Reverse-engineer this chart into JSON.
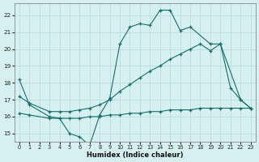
{
  "xlabel": "Humidex (Indice chaleur)",
  "bg_color": "#d6f0f0",
  "grid_color": "#b8dede",
  "line_color": "#1a6b6b",
  "xlim": [
    -0.5,
    23.5
  ],
  "ylim": [
    14.5,
    22.7
  ],
  "xticks": [
    0,
    1,
    2,
    3,
    4,
    5,
    6,
    7,
    8,
    9,
    10,
    11,
    12,
    13,
    14,
    15,
    16,
    17,
    18,
    19,
    20,
    21,
    22,
    23
  ],
  "yticks": [
    15,
    16,
    17,
    18,
    19,
    20,
    21,
    22
  ],
  "line1_x": [
    0,
    1,
    3,
    4,
    5,
    6,
    7,
    8,
    9,
    10,
    11,
    12,
    13,
    14,
    15,
    16,
    17,
    19,
    20,
    21,
    22,
    23
  ],
  "line1_y": [
    18.2,
    16.7,
    16.0,
    15.9,
    15.0,
    14.8,
    14.3,
    16.1,
    17.1,
    20.3,
    21.3,
    21.5,
    21.4,
    22.3,
    22.3,
    21.1,
    21.3,
    20.3,
    20.3,
    17.7,
    17.0,
    16.5
  ],
  "line2_x": [
    0,
    1,
    3,
    4,
    5,
    6,
    7,
    8,
    9,
    10,
    11,
    12,
    13,
    14,
    15,
    16,
    17,
    18,
    19,
    20,
    21,
    22,
    23
  ],
  "line2_y": [
    16.2,
    16.1,
    15.9,
    15.9,
    15.9,
    15.9,
    16.0,
    16.0,
    16.1,
    16.1,
    16.2,
    16.2,
    16.3,
    16.3,
    16.4,
    16.4,
    16.4,
    16.5,
    16.5,
    16.5,
    16.5,
    16.5,
    16.5
  ],
  "line3_x": [
    0,
    1,
    3,
    4,
    5,
    6,
    7,
    8,
    9,
    10,
    11,
    12,
    13,
    14,
    15,
    16,
    17,
    18,
    19,
    20,
    22,
    23
  ],
  "line3_y": [
    17.2,
    16.8,
    16.3,
    16.3,
    16.3,
    16.4,
    16.5,
    16.7,
    17.0,
    17.5,
    17.9,
    18.3,
    18.7,
    19.0,
    19.4,
    19.7,
    20.0,
    20.3,
    19.9,
    20.3,
    17.0,
    16.5
  ]
}
